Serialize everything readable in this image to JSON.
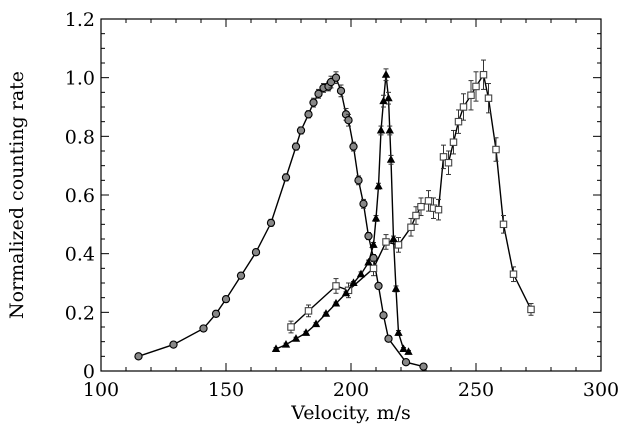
{
  "chart_data": {
    "type": "line",
    "title": "",
    "xlabel": "Velocity, m/s",
    "ylabel": "Normalized counting rate",
    "xlim": [
      100,
      300
    ],
    "ylim": [
      0,
      1.2
    ],
    "x_ticks": [
      100,
      150,
      200,
      250,
      300
    ],
    "y_ticks": [
      0,
      0.2,
      0.4,
      0.6,
      0.8,
      1.0,
      1.2
    ],
    "y_tick_labels": [
      "0",
      "0.2",
      "0.4",
      "0.6",
      "0.8",
      "1.0",
      "1.2"
    ],
    "grid": false,
    "series": [
      {
        "marker": "circle",
        "color": "#000000",
        "points": [
          [
            115,
            0.05,
            0.008
          ],
          [
            129,
            0.09,
            0.008
          ],
          [
            141,
            0.145,
            0.01
          ],
          [
            146,
            0.195,
            0.01
          ],
          [
            150,
            0.245,
            0.01
          ],
          [
            156,
            0.325,
            0.01
          ],
          [
            162,
            0.405,
            0.01
          ],
          [
            168,
            0.505,
            0.012
          ],
          [
            174,
            0.66,
            0.012
          ],
          [
            178,
            0.765,
            0.012
          ],
          [
            180,
            0.82,
            0.012
          ],
          [
            183,
            0.875,
            0.012
          ],
          [
            185,
            0.915,
            0.015
          ],
          [
            187,
            0.945,
            0.015
          ],
          [
            189,
            0.965,
            0.015
          ],
          [
            191,
            0.97,
            0.015
          ],
          [
            192,
            0.985,
            0.02
          ],
          [
            194,
            1.0,
            0.02
          ],
          [
            196,
            0.955,
            0.02
          ],
          [
            198,
            0.875,
            0.02
          ],
          [
            199,
            0.855,
            0.02
          ],
          [
            201,
            0.765,
            0.015
          ],
          [
            203,
            0.65,
            0.015
          ],
          [
            205,
            0.57,
            0.015
          ],
          [
            207,
            0.46,
            0.012
          ],
          [
            209,
            0.385,
            0.012
          ],
          [
            211,
            0.29,
            0.01
          ],
          [
            213,
            0.19,
            0.01
          ],
          [
            215,
            0.11,
            0.01
          ],
          [
            222,
            0.03,
            0.008
          ],
          [
            229,
            0.015,
            0.008
          ]
        ]
      },
      {
        "marker": "square",
        "color": "#555555",
        "points": [
          [
            176,
            0.15,
            0.02
          ],
          [
            183,
            0.205,
            0.02
          ],
          [
            194,
            0.29,
            0.025
          ],
          [
            199,
            0.275,
            0.025
          ],
          [
            209,
            0.35,
            0.025
          ],
          [
            214,
            0.44,
            0.025
          ],
          [
            219,
            0.43,
            0.025
          ],
          [
            224,
            0.49,
            0.03
          ],
          [
            226,
            0.53,
            0.03
          ],
          [
            228,
            0.56,
            0.03
          ],
          [
            231,
            0.58,
            0.035
          ],
          [
            233,
            0.555,
            0.035
          ],
          [
            235,
            0.55,
            0.035
          ],
          [
            237,
            0.73,
            0.04
          ],
          [
            239,
            0.71,
            0.04
          ],
          [
            241,
            0.78,
            0.04
          ],
          [
            243,
            0.85,
            0.04
          ],
          [
            245,
            0.9,
            0.045
          ],
          [
            248,
            0.94,
            0.05
          ],
          [
            250,
            0.97,
            0.05
          ],
          [
            253,
            1.01,
            0.05
          ],
          [
            255,
            0.93,
            0.05
          ],
          [
            258,
            0.755,
            0.04
          ],
          [
            261,
            0.5,
            0.03
          ],
          [
            265,
            0.33,
            0.025
          ],
          [
            272,
            0.21,
            0.02
          ]
        ]
      },
      {
        "marker": "triangle",
        "color": "#000000",
        "points": [
          [
            170,
            0.075,
            0.005
          ],
          [
            174,
            0.09,
            0.005
          ],
          [
            178,
            0.11,
            0.005
          ],
          [
            182,
            0.13,
            0.005
          ],
          [
            186,
            0.16,
            0.005
          ],
          [
            190,
            0.195,
            0.005
          ],
          [
            194,
            0.23,
            0.005
          ],
          [
            198,
            0.265,
            0.005
          ],
          [
            201,
            0.3,
            0.005
          ],
          [
            204,
            0.33,
            0.008
          ],
          [
            207,
            0.37,
            0.008
          ],
          [
            209,
            0.43,
            0.008
          ],
          [
            210,
            0.52,
            0.01
          ],
          [
            211,
            0.63,
            0.01
          ],
          [
            212,
            0.82,
            0.015
          ],
          [
            213,
            0.92,
            0.02
          ],
          [
            214,
            1.01,
            0.02
          ],
          [
            215,
            0.93,
            0.02
          ],
          [
            215.5,
            0.82,
            0.015
          ],
          [
            216,
            0.72,
            0.015
          ],
          [
            217,
            0.45,
            0.01
          ],
          [
            218,
            0.28,
            0.01
          ],
          [
            219,
            0.13,
            0.008
          ],
          [
            221,
            0.075,
            0.005
          ],
          [
            223,
            0.065,
            0.005
          ]
        ]
      }
    ]
  }
}
